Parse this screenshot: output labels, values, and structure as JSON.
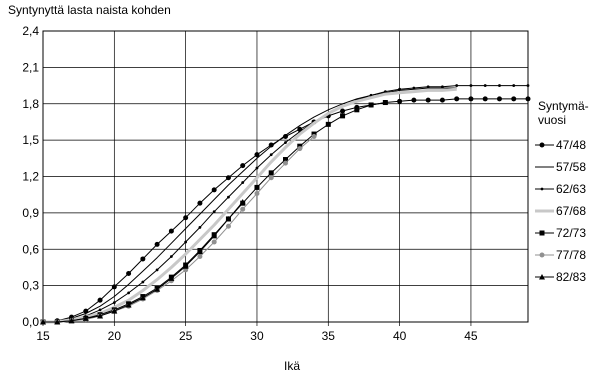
{
  "chart_data": {
    "type": "line",
    "title": "Syntynyttä lasta naista kohden",
    "xlabel": "Ikä",
    "ylabel": "",
    "xlim": [
      15,
      49
    ],
    "ylim": [
      0,
      2.4
    ],
    "xticks": [
      15,
      20,
      25,
      30,
      35,
      40,
      45
    ],
    "yticks": [
      "0,0",
      "0,3",
      "0,6",
      "0,9",
      "1,2",
      "1,5",
      "1,8",
      "2,1",
      "2,4"
    ],
    "ytick_values": [
      0,
      0.3,
      0.6,
      0.9,
      1.2,
      1.5,
      1.8,
      2.1,
      2.4
    ],
    "grid": true,
    "legend_title": "Syntymä-\nvuosi",
    "legend_position": "right",
    "series": [
      {
        "name": "47/48",
        "color": "#000000",
        "marker": "circle",
        "width": 1,
        "x": [
          15,
          16,
          17,
          18,
          19,
          20,
          21,
          22,
          23,
          24,
          25,
          26,
          27,
          28,
          29,
          30,
          31,
          32,
          33,
          34,
          35,
          36,
          37,
          38,
          39,
          40,
          41,
          42,
          43,
          44,
          45,
          46,
          47,
          48,
          49
        ],
        "y": [
          0.0,
          0.01,
          0.04,
          0.09,
          0.18,
          0.29,
          0.4,
          0.52,
          0.64,
          0.75,
          0.86,
          0.98,
          1.09,
          1.19,
          1.29,
          1.38,
          1.46,
          1.53,
          1.59,
          1.65,
          1.7,
          1.74,
          1.77,
          1.79,
          1.81,
          1.82,
          1.83,
          1.83,
          1.83,
          1.84,
          1.84,
          1.84,
          1.84,
          1.84,
          1.84
        ]
      },
      {
        "name": "57/58",
        "color": "#000000",
        "marker": "none",
        "width": 1,
        "x": [
          15,
          16,
          17,
          18,
          19,
          20,
          21,
          22,
          23,
          24,
          25,
          26,
          27,
          28,
          29,
          30,
          31,
          32,
          33,
          34,
          35,
          36,
          37,
          38,
          39,
          40,
          41,
          42,
          43,
          44
        ],
        "y": [
          0.0,
          0.01,
          0.03,
          0.07,
          0.13,
          0.21,
          0.31,
          0.42,
          0.53,
          0.65,
          0.77,
          0.89,
          1.01,
          1.13,
          1.24,
          1.35,
          1.45,
          1.54,
          1.62,
          1.69,
          1.75,
          1.8,
          1.84,
          1.87,
          1.89,
          1.91,
          1.92,
          1.93,
          1.93,
          1.93
        ]
      },
      {
        "name": "62/63",
        "color": "#000000",
        "marker": "dot",
        "width": 1,
        "x": [
          15,
          16,
          17,
          18,
          19,
          20,
          21,
          22,
          23,
          24,
          25,
          26,
          27,
          28,
          29,
          30,
          31,
          32,
          33,
          34,
          35,
          36,
          37,
          38,
          39,
          40,
          41,
          42,
          43,
          44,
          45,
          46,
          47,
          48,
          49
        ],
        "y": [
          0.0,
          0.0,
          0.02,
          0.05,
          0.1,
          0.16,
          0.24,
          0.33,
          0.43,
          0.54,
          0.66,
          0.78,
          0.91,
          1.03,
          1.15,
          1.27,
          1.38,
          1.48,
          1.57,
          1.65,
          1.72,
          1.78,
          1.83,
          1.87,
          1.9,
          1.92,
          1.93,
          1.94,
          1.94,
          1.95,
          1.95,
          1.95,
          1.95,
          1.95,
          1.95
        ]
      },
      {
        "name": "67/68",
        "color": "#c8c8c8",
        "marker": "none",
        "width": 3,
        "x": [
          15,
          16,
          17,
          18,
          19,
          20,
          21,
          22,
          23,
          24,
          25,
          26,
          27,
          28,
          29,
          30,
          31,
          32,
          33,
          34,
          35,
          36,
          37,
          38,
          39,
          40,
          41,
          42,
          43,
          44
        ],
        "y": [
          0.0,
          0.0,
          0.02,
          0.04,
          0.07,
          0.12,
          0.18,
          0.26,
          0.35,
          0.45,
          0.56,
          0.68,
          0.8,
          0.93,
          1.06,
          1.19,
          1.32,
          1.44,
          1.55,
          1.64,
          1.72,
          1.78,
          1.82,
          1.85,
          1.88,
          1.89,
          1.9,
          1.91,
          1.91,
          1.92
        ]
      },
      {
        "name": "72/73",
        "color": "#000000",
        "marker": "square",
        "width": 1,
        "x": [
          15,
          16,
          17,
          18,
          19,
          20,
          21,
          22,
          23,
          24,
          25,
          26,
          27,
          28,
          29,
          30,
          31,
          32,
          33,
          34,
          35,
          36,
          37,
          38,
          39
        ],
        "y": [
          0.0,
          0.0,
          0.01,
          0.03,
          0.06,
          0.1,
          0.15,
          0.21,
          0.28,
          0.37,
          0.47,
          0.59,
          0.72,
          0.85,
          0.98,
          1.11,
          1.23,
          1.34,
          1.45,
          1.55,
          1.63,
          1.7,
          1.75,
          1.79,
          1.81
        ]
      },
      {
        "name": "77/78",
        "color": "#909090",
        "marker": "circle",
        "width": 1,
        "x": [
          15,
          16,
          17,
          18,
          19,
          20,
          21,
          22,
          23,
          24,
          25,
          26,
          27,
          28,
          29,
          30,
          31,
          32,
          33,
          34
        ],
        "y": [
          0.0,
          0.0,
          0.01,
          0.02,
          0.05,
          0.09,
          0.13,
          0.19,
          0.26,
          0.34,
          0.43,
          0.54,
          0.66,
          0.79,
          0.93,
          1.06,
          1.19,
          1.31,
          1.43,
          1.53
        ]
      },
      {
        "name": "82/83",
        "color": "#000000",
        "marker": "triangle",
        "width": 1,
        "x": [
          15,
          16,
          17,
          18,
          19,
          20,
          21,
          22,
          23,
          24,
          25,
          26,
          27,
          28,
          29
        ],
        "y": [
          0.0,
          0.0,
          0.01,
          0.03,
          0.05,
          0.09,
          0.14,
          0.2,
          0.27,
          0.36,
          0.46,
          0.58,
          0.71,
          0.85,
          0.99
        ]
      }
    ]
  }
}
